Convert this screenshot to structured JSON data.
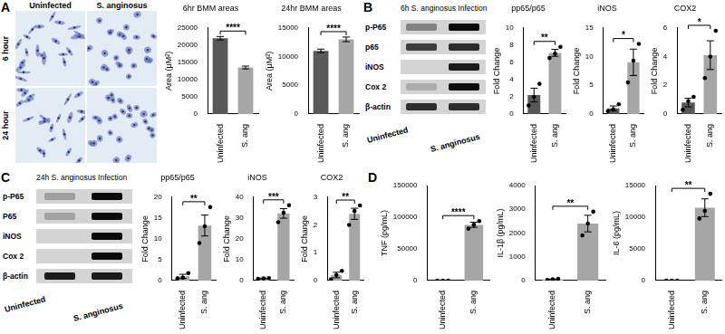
{
  "panel_labels": [
    "A",
    "B",
    "C",
    "D"
  ],
  "micrographs": {
    "columns": [
      "Uninfected",
      "S. anginosus"
    ],
    "rows": [
      "6 hour",
      "24 hour"
    ]
  },
  "blots": [
    {
      "title": "6h S. anginosus Infection",
      "bands": [
        "p-P65",
        "p65",
        "iNOS",
        "Cox 2",
        "β-actin"
      ],
      "lanes": [
        "Uninfected",
        "S. anginosus"
      ]
    },
    {
      "title": "24h S. anginosus Infection",
      "bands": [
        "p-P65",
        "P65",
        "iNOS",
        "Cox 2",
        "β-actin"
      ],
      "lanes": [
        "Uninfected",
        "S. anginosus"
      ]
    }
  ],
  "chart_data": [
    {
      "type": "bar",
      "title": "6hr BMM areas",
      "categories": [
        "Uninfected",
        "S. ang"
      ],
      "values": [
        22000,
        13500
      ],
      "errors": [
        500,
        400
      ],
      "colors": [
        "#595959",
        "#a6a6a6"
      ],
      "y_label": "Area (μM²)",
      "ylim": [
        0,
        25000
      ],
      "yticks": [
        0,
        5000,
        10000,
        15000,
        20000,
        25000
      ],
      "grid": false,
      "annotation": "****"
    },
    {
      "type": "bar",
      "title": "24hr BMM areas",
      "categories": [
        "Uninfected",
        "S. ang"
      ],
      "values": [
        11000,
        13000
      ],
      "errors": [
        300,
        400
      ],
      "colors": [
        "#595959",
        "#a6a6a6"
      ],
      "y_label": "Area (μM²)",
      "ylim": [
        0,
        15000
      ],
      "yticks": [
        0,
        5000,
        10000,
        15000
      ],
      "grid": false,
      "annotation": "****"
    },
    {
      "type": "bar",
      "title": "pp65/p65",
      "categories": [
        "Uninfected",
        "S. ang"
      ],
      "values": [
        2.2,
        7.1
      ],
      "errors": [
        0.8,
        0.4
      ],
      "points": [
        [
          1.0,
          2.0,
          3.5
        ],
        [
          6.5,
          7.0,
          7.8
        ]
      ],
      "colors": [
        "#595959",
        "#a6a6a6"
      ],
      "y_label": "Fold Change",
      "ylim": [
        0,
        10
      ],
      "yticks": [
        0,
        2,
        4,
        6,
        8,
        10
      ],
      "grid": false,
      "annotation": "**"
    },
    {
      "type": "bar",
      "title": "iNOS",
      "categories": [
        "Uninfected",
        "S. ang"
      ],
      "values": [
        1.0,
        9.0
      ],
      "errors": [
        0.4,
        2.3
      ],
      "points": [
        [
          0.5,
          0.8,
          1.7
        ],
        [
          5.5,
          9.3,
          12.2
        ]
      ],
      "colors": [
        "#595959",
        "#a6a6a6"
      ],
      "y_label": "Fold Change",
      "ylim": [
        0,
        15
      ],
      "yticks": [
        0,
        5,
        10,
        15
      ],
      "grid": false,
      "annotation": "*"
    },
    {
      "type": "bar",
      "title": "COX2",
      "categories": [
        "Uninfected",
        "S. ang"
      ],
      "values": [
        0.8,
        4.1
      ],
      "errors": [
        0.3,
        1.0
      ],
      "points": [
        [
          0.3,
          0.9,
          1.2
        ],
        [
          2.5,
          4.0,
          5.8
        ]
      ],
      "colors": [
        "#595959",
        "#a6a6a6"
      ],
      "y_label": "Fold Change",
      "ylim": [
        0,
        6
      ],
      "yticks": [
        0,
        2,
        4,
        6
      ],
      "grid": false,
      "annotation": "*"
    },
    {
      "type": "bar",
      "title": "pp65/p65",
      "categories": [
        "Uninfected",
        "S. ang"
      ],
      "values": [
        1.0,
        13.2
      ],
      "errors": [
        0.5,
        2.5
      ],
      "points": [
        [
          0.5,
          0.7,
          1.8
        ],
        [
          9.0,
          13.0,
          17.6
        ]
      ],
      "colors": [
        "#a6a6a6",
        "#a6a6a6"
      ],
      "y_label": "Fold Change",
      "ylim": [
        0,
        20
      ],
      "yticks": [
        0,
        5,
        10,
        15,
        20
      ],
      "grid": false,
      "annotation": "**"
    },
    {
      "type": "bar",
      "title": "iNOS",
      "categories": [
        "Uninfected",
        "S. ang"
      ],
      "values": [
        1.0,
        32.2
      ],
      "errors": [
        0.2,
        2.3
      ],
      "points": [
        [
          0.8,
          1.0,
          1.2
        ],
        [
          28.0,
          32.5,
          36.1
        ]
      ],
      "colors": [
        "#a6a6a6",
        "#a6a6a6"
      ],
      "y_label": "Fold Change",
      "ylim": [
        0,
        40
      ],
      "yticks": [
        0,
        10,
        20,
        30,
        40
      ],
      "grid": false,
      "annotation": "***"
    },
    {
      "type": "bar",
      "title": "COX2",
      "categories": [
        "Uninfected",
        "S. ang"
      ],
      "values": [
        0.2,
        2.4
      ],
      "errors": [
        0.1,
        0.2
      ],
      "points": [
        [
          0.05,
          0.2,
          0.35
        ],
        [
          2.0,
          2.5,
          2.7
        ]
      ],
      "colors": [
        "#a6a6a6",
        "#a6a6a6"
      ],
      "y_label": "Fold Change",
      "ylim": [
        0,
        3
      ],
      "yticks": [
        0,
        1,
        2,
        3
      ],
      "grid": false,
      "annotation": "**"
    },
    {
      "type": "bar",
      "categories": [
        "Uninfected",
        "S. ang"
      ],
      "values": [
        0,
        88000
      ],
      "errors": [
        0,
        4000
      ],
      "points": [
        [
          0,
          0,
          0
        ],
        [
          82000,
          88000,
          94000
        ]
      ],
      "colors": [
        "#a6a6a6",
        "#a6a6a6"
      ],
      "y_label": "TNF (pg/mL)",
      "ylim": [
        0,
        150000
      ],
      "yticks": [
        0,
        50000,
        100000,
        150000
      ],
      "grid": false,
      "annotation": "****"
    },
    {
      "type": "bar",
      "categories": [
        "Uninfected",
        "S. ang"
      ],
      "values": [
        50,
        2400
      ],
      "errors": [
        15,
        350
      ],
      "points": [
        [
          30,
          50,
          70
        ],
        [
          1900,
          2400,
          2900
        ]
      ],
      "colors": [
        "#a6a6a6",
        "#a6a6a6"
      ],
      "y_label": "IL-1β (pg/mL)",
      "ylim": [
        0,
        4000
      ],
      "yticks": [
        0,
        1000,
        2000,
        3000,
        4000
      ],
      "grid": false,
      "annotation": "**"
    },
    {
      "type": "bar",
      "categories": [
        "Uninfected",
        "S. ang"
      ],
      "values": [
        0,
        11500
      ],
      "errors": [
        0,
        1400
      ],
      "points": [
        [
          0,
          0,
          0
        ],
        [
          9800,
          11000,
          13700
        ]
      ],
      "colors": [
        "#a6a6a6",
        "#a6a6a6"
      ],
      "y_label": "IL-6 (pg/mL)",
      "ylim": [
        0,
        15000
      ],
      "yticks": [
        0,
        5000,
        10000,
        15000
      ],
      "grid": false,
      "annotation": "**"
    }
  ]
}
